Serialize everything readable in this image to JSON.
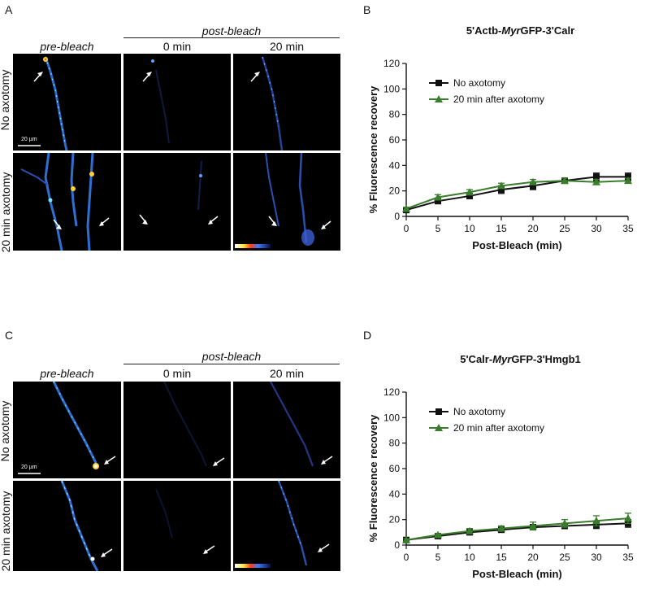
{
  "panels": {
    "A": {
      "letter": "A",
      "header_post": "post-bleach",
      "col_pre": "pre-bleach",
      "col_0": "0 min",
      "col_20": "20 min",
      "row_top": "No axotomy",
      "row_bottom": "20 min axotomy",
      "scale_bar": "20 µm"
    },
    "C": {
      "letter": "C",
      "header_post": "post-bleach",
      "col_pre": "pre-bleach",
      "col_0": "0 min",
      "col_20": "20 min",
      "row_top": "No axotomy",
      "row_bottom": "20 min axotomy",
      "scale_bar": "20 µm"
    },
    "B": {
      "letter": "B"
    },
    "D": {
      "letter": "D"
    }
  },
  "colors": {
    "no_axotomy": "#111111",
    "after_axotomy": "#3a7d2c"
  },
  "chart_data": [
    {
      "id": "B",
      "type": "line",
      "title_prefix": "5'Actb-",
      "title_italic": "Myr",
      "title_suffix": "GFP-3'Calr",
      "xlabel": "Post-Bleach (min)",
      "ylabel": "% Fluorescence recovery",
      "xlim": [
        0,
        35
      ],
      "ylim": [
        0,
        120
      ],
      "xticks": [
        "0",
        "5",
        "10",
        "15",
        "20",
        "25",
        "30",
        "35"
      ],
      "yticks": [
        "0",
        "20",
        "40",
        "60",
        "80",
        "100",
        "120"
      ],
      "x": [
        0,
        5,
        10,
        15,
        20,
        25,
        30,
        35
      ],
      "series": [
        {
          "name": "No axotomy",
          "marker": "square",
          "values": [
            5,
            12,
            16,
            21,
            24,
            28,
            31,
            31
          ],
          "errors": [
            1,
            2,
            2,
            3,
            3,
            2,
            3,
            3
          ]
        },
        {
          "name": "20 min after axotomy",
          "marker": "triangle",
          "values": [
            6,
            15,
            19,
            24,
            27,
            28,
            27,
            28
          ],
          "errors": [
            1,
            2,
            2,
            2,
            2,
            2,
            2,
            2
          ]
        }
      ]
    },
    {
      "id": "D",
      "type": "line",
      "title_prefix": "5'Calr-",
      "title_italic": "Myr",
      "title_suffix": "GFP-3'Hmgb1",
      "xlabel": "Post-Bleach (min)",
      "ylabel": "% Fluorescence recovery",
      "xlim": [
        0,
        35
      ],
      "ylim": [
        0,
        120
      ],
      "xticks": [
        "0",
        "5",
        "10",
        "15",
        "20",
        "25",
        "30",
        "35"
      ],
      "yticks": [
        "0",
        "20",
        "40",
        "60",
        "80",
        "100",
        "120"
      ],
      "x": [
        0,
        5,
        10,
        15,
        20,
        25,
        30,
        35
      ],
      "series": [
        {
          "name": "No axotomy",
          "marker": "square",
          "values": [
            4,
            7,
            10,
            12,
            14,
            15,
            16,
            17
          ],
          "errors": [
            1,
            1,
            1,
            1,
            2,
            2,
            3,
            3
          ]
        },
        {
          "name": "20 min after axotomy",
          "marker": "triangle",
          "values": [
            4,
            8,
            11,
            13,
            15,
            17,
            19,
            21
          ],
          "errors": [
            1,
            1,
            2,
            2,
            3,
            3,
            4,
            4
          ]
        }
      ]
    }
  ]
}
